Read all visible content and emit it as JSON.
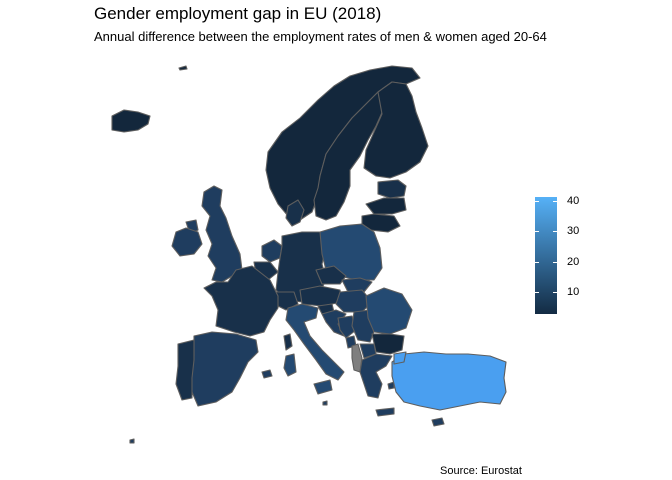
{
  "title": "Gender employment gap in EU (2018)",
  "subtitle": "Annual difference between the employment rates of men & women aged 20-64",
  "source": "Source: Eurostat",
  "legend": {
    "ticks": [
      "10",
      "20",
      "30",
      "40"
    ],
    "low_color": "#132b43",
    "high_color": "#56b1f7",
    "missing_color": "#7f7f7f"
  },
  "colors": {
    "dark": "#13273c",
    "mid_dark": "#18304a",
    "mid": "#1f3d5f",
    "mid_light": "#244a72",
    "light": "#2a5585",
    "brightest": "#4a9ff0",
    "missing": "#7f7f7f",
    "border": "#5e5e5e"
  },
  "countries": [
    {
      "name": "Iceland",
      "color_key": "dark"
    },
    {
      "name": "Norway",
      "color_key": "dark"
    },
    {
      "name": "Sweden",
      "color_key": "dark"
    },
    {
      "name": "Finland",
      "color_key": "dark"
    },
    {
      "name": "Estonia",
      "color_key": "mid_dark"
    },
    {
      "name": "Latvia",
      "color_key": "dark"
    },
    {
      "name": "Lithuania",
      "color_key": "dark"
    },
    {
      "name": "Denmark",
      "color_key": "mid_dark"
    },
    {
      "name": "United Kingdom",
      "color_key": "mid"
    },
    {
      "name": "Ireland",
      "color_key": "mid"
    },
    {
      "name": "Netherlands",
      "color_key": "mid"
    },
    {
      "name": "Belgium",
      "color_key": "mid_dark"
    },
    {
      "name": "Germany",
      "color_key": "mid_dark"
    },
    {
      "name": "Poland",
      "color_key": "mid_light"
    },
    {
      "name": "Czechia",
      "color_key": "mid_dark"
    },
    {
      "name": "Slovakia",
      "color_key": "mid"
    },
    {
      "name": "Austria",
      "color_key": "mid_dark"
    },
    {
      "name": "Hungary",
      "color_key": "mid"
    },
    {
      "name": "Switzerland",
      "color_key": "mid_dark"
    },
    {
      "name": "France",
      "color_key": "mid_dark"
    },
    {
      "name": "Spain",
      "color_key": "mid"
    },
    {
      "name": "Portugal",
      "color_key": "mid_dark"
    },
    {
      "name": "Italy",
      "color_key": "mid_light"
    },
    {
      "name": "Slovenia",
      "color_key": "mid_dark"
    },
    {
      "name": "Croatia",
      "color_key": "mid"
    },
    {
      "name": "Bosnia",
      "color_key": "mid"
    },
    {
      "name": "Serbia",
      "color_key": "mid"
    },
    {
      "name": "Albania",
      "color_key": "missing"
    },
    {
      "name": "North Macedonia",
      "color_key": "mid"
    },
    {
      "name": "Montenegro",
      "color_key": "mid"
    },
    {
      "name": "Romania",
      "color_key": "mid_light"
    },
    {
      "name": "Bulgaria",
      "color_key": "dark"
    },
    {
      "name": "Greece",
      "color_key": "mid"
    },
    {
      "name": "Turkey",
      "color_key": "brightest"
    },
    {
      "name": "Cyprus",
      "color_key": "mid"
    },
    {
      "name": "Malta",
      "color_key": "mid"
    },
    {
      "name": "Svalbard",
      "color_key": "dark"
    }
  ]
}
